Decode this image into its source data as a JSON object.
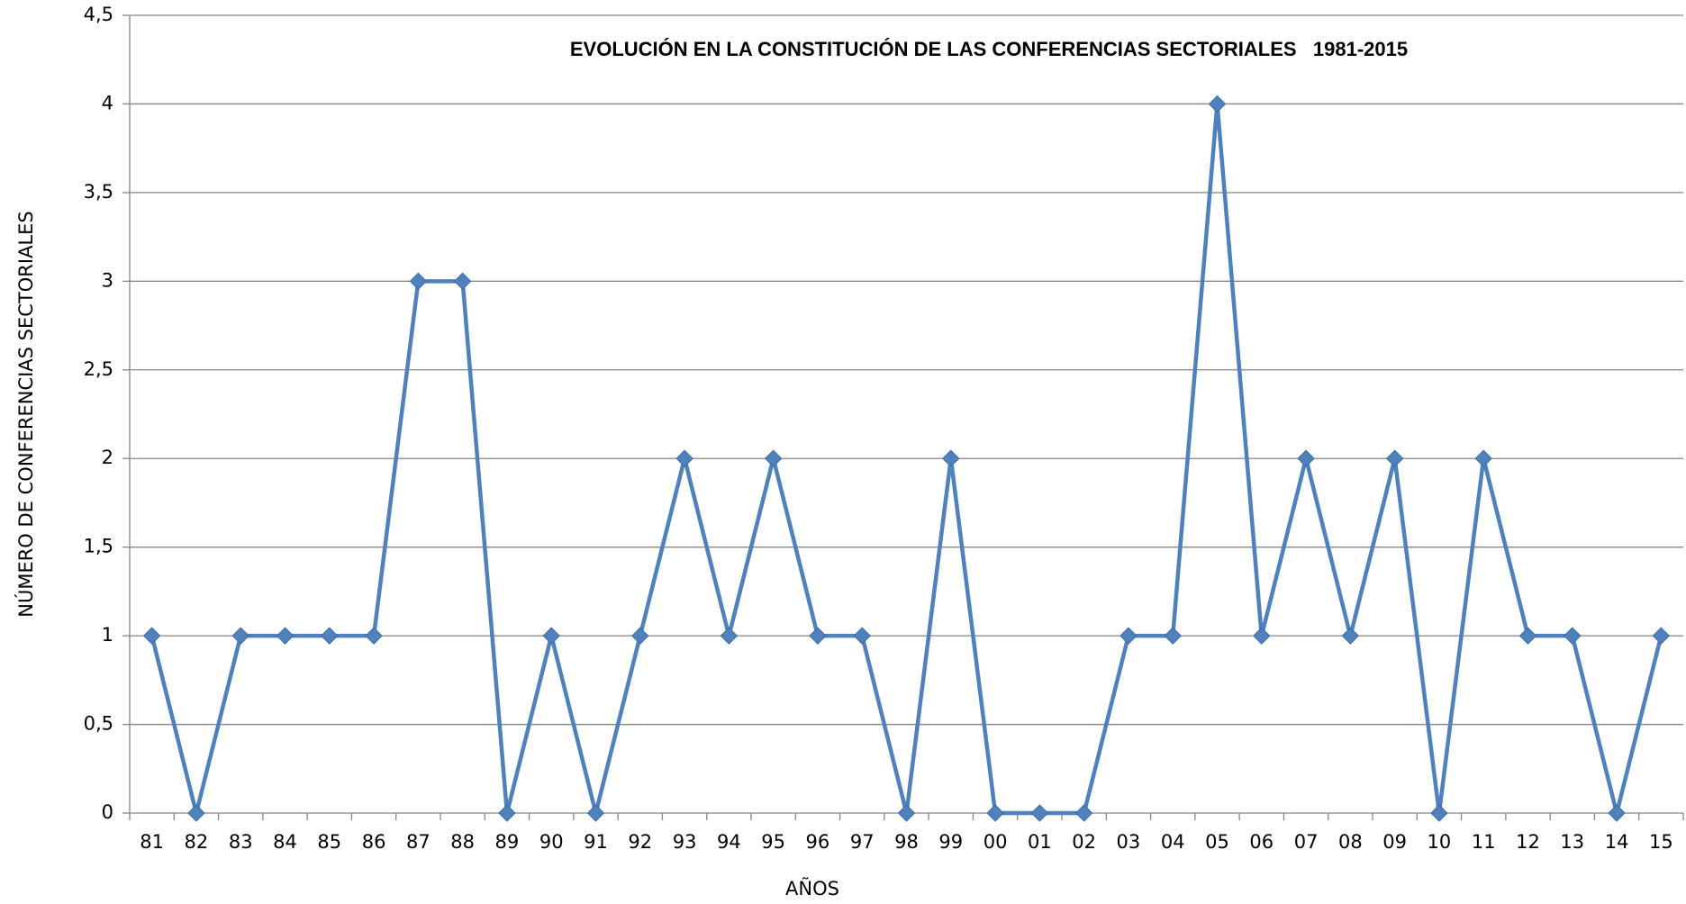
{
  "chart_data": {
    "type": "line",
    "title": "EVOLUCIÓN EN LA CONSTITUCIÓN DE LAS CONFERENCIAS SECTORIALES   1981-2015",
    "xlabel": "AÑOS",
    "ylabel": "NÚMERO DE CONFERENCIAS SECTORIALES",
    "categories": [
      "81",
      "82",
      "83",
      "84",
      "85",
      "86",
      "87",
      "88",
      "89",
      "90",
      "91",
      "92",
      "93",
      "94",
      "95",
      "96",
      "97",
      "98",
      "99",
      "00",
      "01",
      "02",
      "03",
      "04",
      "05",
      "06",
      "07",
      "08",
      "09",
      "10",
      "11",
      "12",
      "13",
      "14",
      "15"
    ],
    "values": [
      1,
      0,
      1,
      1,
      1,
      1,
      3,
      3,
      0,
      1,
      0,
      1,
      2,
      1,
      2,
      1,
      1,
      0,
      2,
      0,
      0,
      0,
      1,
      1,
      4,
      1,
      2,
      1,
      2,
      0,
      2,
      1,
      1,
      0,
      1
    ],
    "color": "#4f81bd",
    "ylim": [
      0,
      4.5
    ],
    "yticks": [
      0,
      {
        "value": 0.5,
        "label": "0,5"
      },
      1,
      {
        "value": 1.5,
        "label": "1,5"
      },
      2,
      {
        "value": 2.5,
        "label": "2,5"
      },
      3,
      {
        "value": 3.5,
        "label": "3,5"
      },
      4,
      {
        "value": 4.5,
        "label": "4,5"
      }
    ],
    "grid": true
  }
}
